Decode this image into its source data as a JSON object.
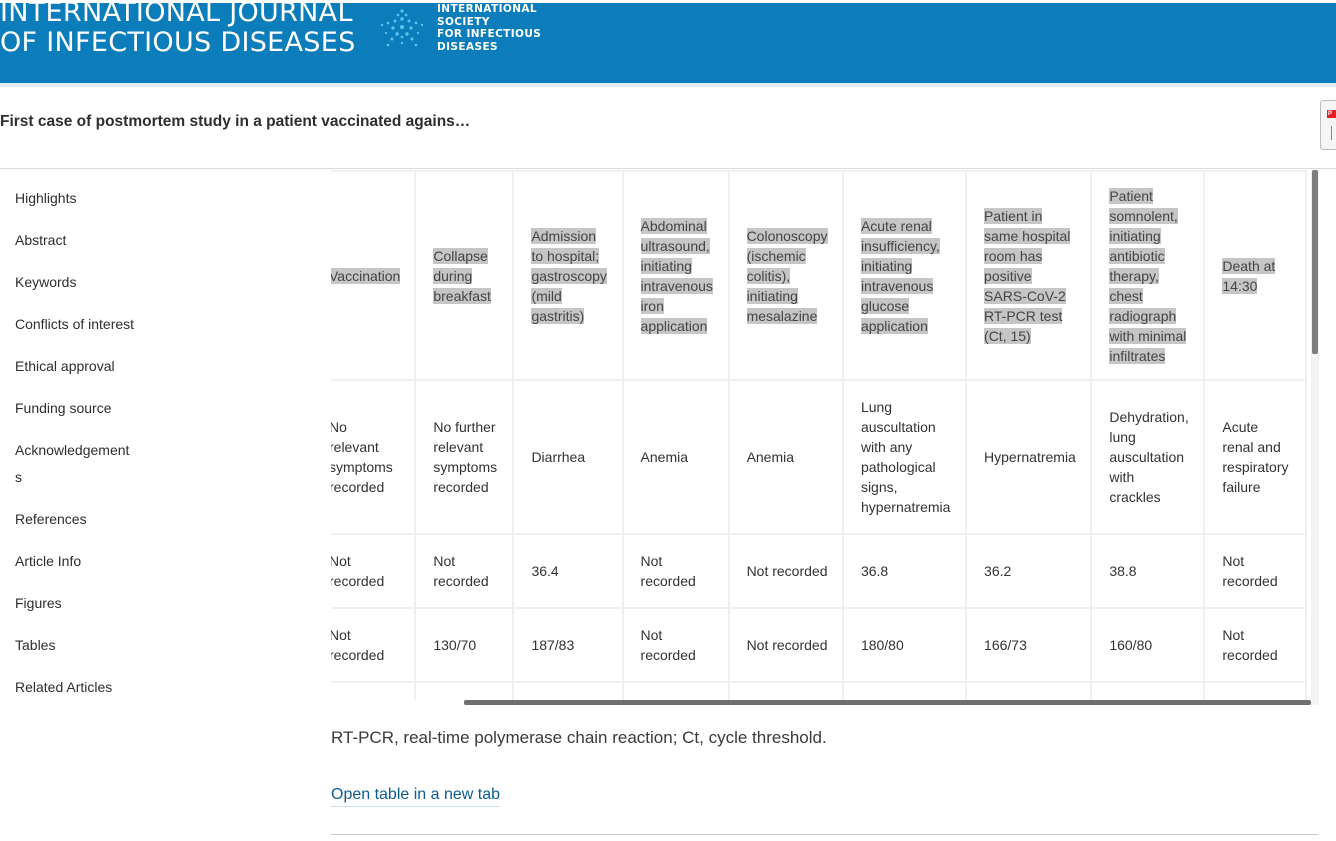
{
  "header": {
    "journal_line1": "INTERNATIONAL JOURNAL",
    "journal_line2": "OF INFECTIOUS DISEASES",
    "society_lines": [
      "INTERNATIONAL",
      "SOCIETY",
      "FOR INFECTIOUS",
      "DISEASES"
    ],
    "brand_color": "#0c7dbb"
  },
  "article": {
    "title": "First case of postmortem study in a patient vaccinated agains…",
    "pdf_icon": "pdf-icon"
  },
  "sidebar": {
    "items": [
      {
        "label": "Highlights"
      },
      {
        "label": "Abstract"
      },
      {
        "label": "Keywords"
      },
      {
        "label": "Conflicts of interest"
      },
      {
        "label": "Ethical approval"
      },
      {
        "label": "Funding source"
      },
      {
        "label": "Acknowledgements"
      },
      {
        "label": "References"
      },
      {
        "label": "Article Info"
      },
      {
        "label": "Figures"
      },
      {
        "label": "Tables"
      },
      {
        "label": "Related Articles"
      }
    ]
  },
  "table": {
    "header_row": [
      "Vaccination",
      "Collapse during breakfast",
      "Admission to hospital; gastroscopy (mild gastritis)",
      "Abdominal ultrasound, initiating intravenous iron application",
      "Colonoscopy (ischemic colitis), initiating mesalazine",
      "Acute renal insufficiency, initiating intravenous glucose application",
      "Patient in same hospital room has positive SARS-CoV-2 RT-PCR test (Ct, 15)",
      "Patient somnolent, initiating antibiotic therapy, chest radiograph with minimal infiltrates",
      "Death at 14:30"
    ],
    "symptoms_row": [
      "No relevant symptoms recorded",
      "No further relevant symptoms recorded",
      "Diarrhea",
      "Anemia",
      "Anemia",
      "Lung auscultation with any pathological signs, hypernatremia",
      "Hypernatremia",
      "Dehydration, lung auscultation with crackles",
      "Acute renal and respiratory failure"
    ],
    "temperature_row": [
      "Not recorded",
      "Not recorded",
      "36.4",
      "Not recorded",
      "Not recorded",
      "36.8",
      "36.2",
      "38.8",
      "Not recorded"
    ],
    "blood_pressure_row": [
      "Not recorded",
      "130/70",
      "187/83",
      "Not recorded",
      "Not recorded",
      "180/80",
      "166/73",
      "160/80",
      "Not recorded"
    ]
  },
  "footnote": "RT-PCR, real-time polymerase chain reaction; Ct, cycle threshold.",
  "open_table_link": "Open table in a new tab"
}
